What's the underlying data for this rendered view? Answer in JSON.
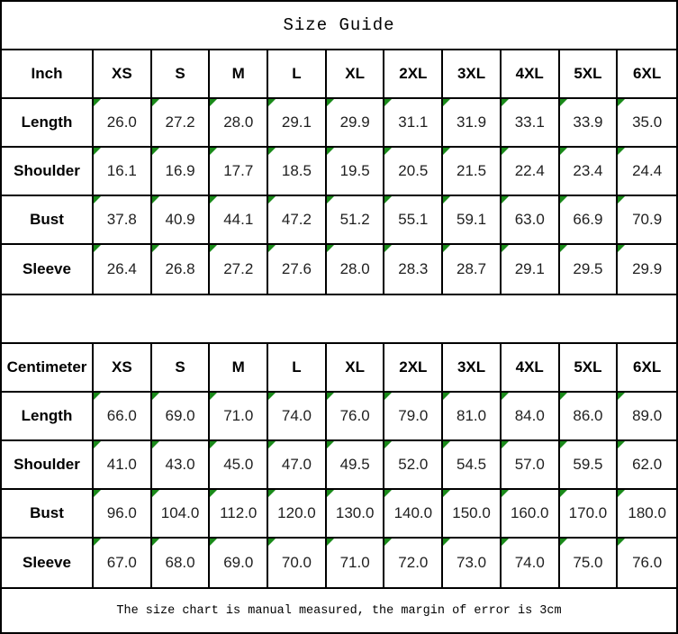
{
  "title": "Size Guide",
  "footer_note": "The size chart is manual measured, the margin of error is 3cm",
  "colors": {
    "background": "#ffffff",
    "border": "#000000",
    "text": "#000000",
    "marker_green": "#1a8a1a"
  },
  "icons": {
    "cell_flag": "green-corner-marker-icon"
  },
  "chart_data": [
    {
      "type": "table",
      "title": "Size Guide",
      "unit": "Inch",
      "columns": [
        "XS",
        "S",
        "M",
        "L",
        "XL",
        "2XL",
        "3XL",
        "4XL",
        "5XL",
        "6XL"
      ],
      "rows": [
        {
          "label": "Length",
          "values": [
            "26.0",
            "27.2",
            "28.0",
            "29.1",
            "29.9",
            "31.1",
            "31.9",
            "33.1",
            "33.9",
            "35.0"
          ]
        },
        {
          "label": "Shoulder",
          "values": [
            "16.1",
            "16.9",
            "17.7",
            "18.5",
            "19.5",
            "20.5",
            "21.5",
            "22.4",
            "23.4",
            "24.4"
          ]
        },
        {
          "label": "Bust",
          "values": [
            "37.8",
            "40.9",
            "44.1",
            "47.2",
            "51.2",
            "55.1",
            "59.1",
            "63.0",
            "66.9",
            "70.9"
          ]
        },
        {
          "label": "Sleeve",
          "values": [
            "26.4",
            "26.8",
            "27.2",
            "27.6",
            "28.0",
            "28.3",
            "28.7",
            "29.1",
            "29.5",
            "29.9"
          ]
        }
      ]
    },
    {
      "type": "table",
      "unit": "Centimeter",
      "columns": [
        "XS",
        "S",
        "M",
        "L",
        "XL",
        "2XL",
        "3XL",
        "4XL",
        "5XL",
        "6XL"
      ],
      "rows": [
        {
          "label": "Length",
          "values": [
            "66.0",
            "69.0",
            "71.0",
            "74.0",
            "76.0",
            "79.0",
            "81.0",
            "84.0",
            "86.0",
            "89.0"
          ]
        },
        {
          "label": "Shoulder",
          "values": [
            "41.0",
            "43.0",
            "45.0",
            "47.0",
            "49.5",
            "52.0",
            "54.5",
            "57.0",
            "59.5",
            "62.0"
          ]
        },
        {
          "label": "Bust",
          "values": [
            "96.0",
            "104.0",
            "112.0",
            "120.0",
            "130.0",
            "140.0",
            "150.0",
            "160.0",
            "170.0",
            "180.0"
          ]
        },
        {
          "label": "Sleeve",
          "values": [
            "67.0",
            "68.0",
            "69.0",
            "70.0",
            "71.0",
            "72.0",
            "73.0",
            "74.0",
            "75.0",
            "76.0"
          ]
        }
      ]
    }
  ]
}
